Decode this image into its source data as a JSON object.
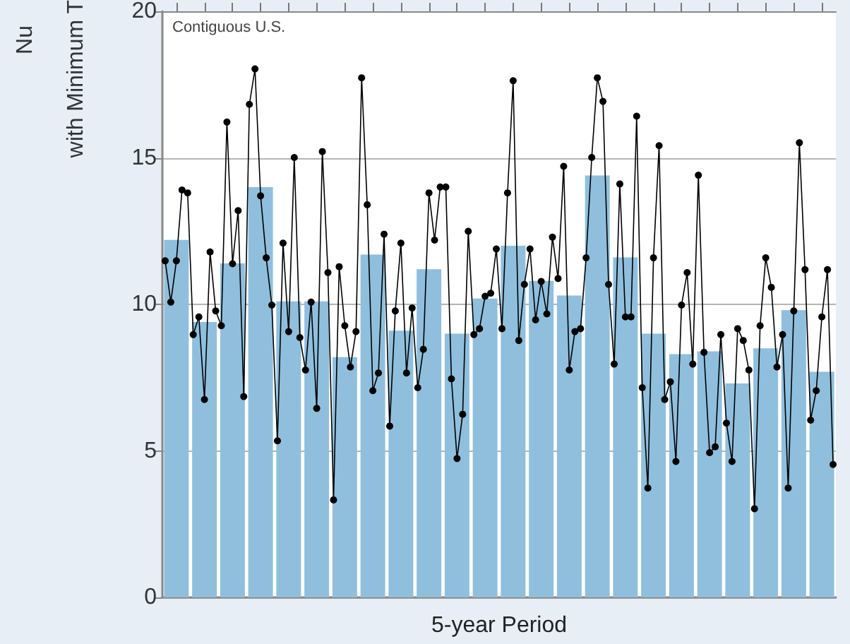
{
  "chart_data": [
    {
      "type": "bar",
      "xlabel": "5-year Period",
      "ylabel": "Nu\nwith Minimum T",
      "annotations": [
        "Contiguous U.S."
      ],
      "categories": [
        null,
        null,
        null,
        null,
        null,
        null,
        null,
        null,
        null,
        null,
        null,
        null,
        null,
        null,
        null,
        null,
        null,
        null,
        null,
        null,
        null,
        null,
        null,
        null
      ],
      "series": [
        {
          "color": "#8fbfdd",
          "values": [
            12.2,
            9.4,
            11.4,
            14.0,
            10.1,
            10.1,
            8.2,
            11.7,
            9.1,
            11.2,
            9.0,
            10.2,
            12.0,
            10.8,
            10.3,
            14.4,
            11.6,
            9.0,
            8.3,
            8.4,
            7.3,
            8.5,
            9.8,
            7.7
          ]
        }
      ],
      "ylim": [
        0,
        20
      ],
      "yticks": [
        0,
        5,
        10,
        15,
        20
      ],
      "grid": "y",
      "tick_labels": "y"
    },
    {
      "type": "line",
      "categories": [
        null,
        null,
        null,
        null,
        null,
        null,
        null,
        null,
        null,
        null,
        null,
        null,
        null,
        null,
        null,
        null,
        null,
        null,
        null,
        null,
        null,
        null,
        null,
        null,
        null,
        null,
        null,
        null,
        null,
        null,
        null,
        null,
        null,
        null,
        null,
        null,
        null,
        null,
        null,
        null,
        null,
        null,
        null,
        null,
        null,
        null,
        null,
        null,
        null,
        null,
        null,
        null,
        null,
        null,
        null,
        null,
        null,
        null,
        null,
        null,
        null,
        null,
        null,
        null,
        null,
        null,
        null,
        null,
        null,
        null,
        null,
        null,
        null,
        null,
        null,
        null,
        null,
        null,
        null,
        null,
        null,
        null,
        null,
        null,
        null,
        null,
        null,
        null,
        null,
        null,
        null,
        null,
        null,
        null,
        null,
        null,
        null,
        null,
        null,
        null,
        null,
        null,
        null,
        null,
        null,
        null,
        null,
        null,
        null,
        null,
        null,
        null,
        null,
        null,
        null,
        null,
        null,
        null,
        null,
        null
      ],
      "series": [
        {
          "color": "#000000",
          "values": [
            11.5,
            10.1,
            11.5,
            13.9,
            13.8,
            9.0,
            9.6,
            6.8,
            11.8,
            9.8,
            9.3,
            16.2,
            11.4,
            13.2,
            6.9,
            16.8,
            18.0,
            13.7,
            11.6,
            10.0,
            5.4,
            12.1,
            9.1,
            15.0,
            8.9,
            7.8,
            10.1,
            6.5,
            15.2,
            11.1,
            3.4,
            11.3,
            9.3,
            7.9,
            9.1,
            17.7,
            13.4,
            7.1,
            7.7,
            12.4,
            5.9,
            9.8,
            12.1,
            7.7,
            9.9,
            7.2,
            8.5,
            13.8,
            12.2,
            14.0,
            14.0,
            7.5,
            4.8,
            6.3,
            12.5,
            9.0,
            9.2,
            10.3,
            10.4,
            11.9,
            9.2,
            13.8,
            17.6,
            8.8,
            10.7,
            11.9,
            9.5,
            10.8,
            9.7,
            12.3,
            10.9,
            14.7,
            7.8,
            9.1,
            9.2,
            11.6,
            15.0,
            17.7,
            16.9,
            10.7,
            8.0,
            14.1,
            9.6,
            9.6,
            16.4,
            7.2,
            3.8,
            11.6,
            15.4,
            6.8,
            7.4,
            4.7,
            10.0,
            11.1,
            8.0,
            14.4,
            8.4,
            5.0,
            5.2,
            9.0,
            6.0,
            4.7,
            9.2,
            8.8,
            7.8,
            3.1,
            9.3,
            11.6,
            10.6,
            7.9,
            9.0,
            3.8,
            9.8,
            15.5,
            11.2,
            6.1,
            7.1,
            9.6,
            11.2,
            4.6
          ]
        }
      ],
      "ylim": [
        0,
        20
      ],
      "yticks": [
        0,
        5,
        10,
        15,
        20
      ],
      "tick_labels": false,
      "marker": "circle",
      "line_style": "solid"
    }
  ]
}
